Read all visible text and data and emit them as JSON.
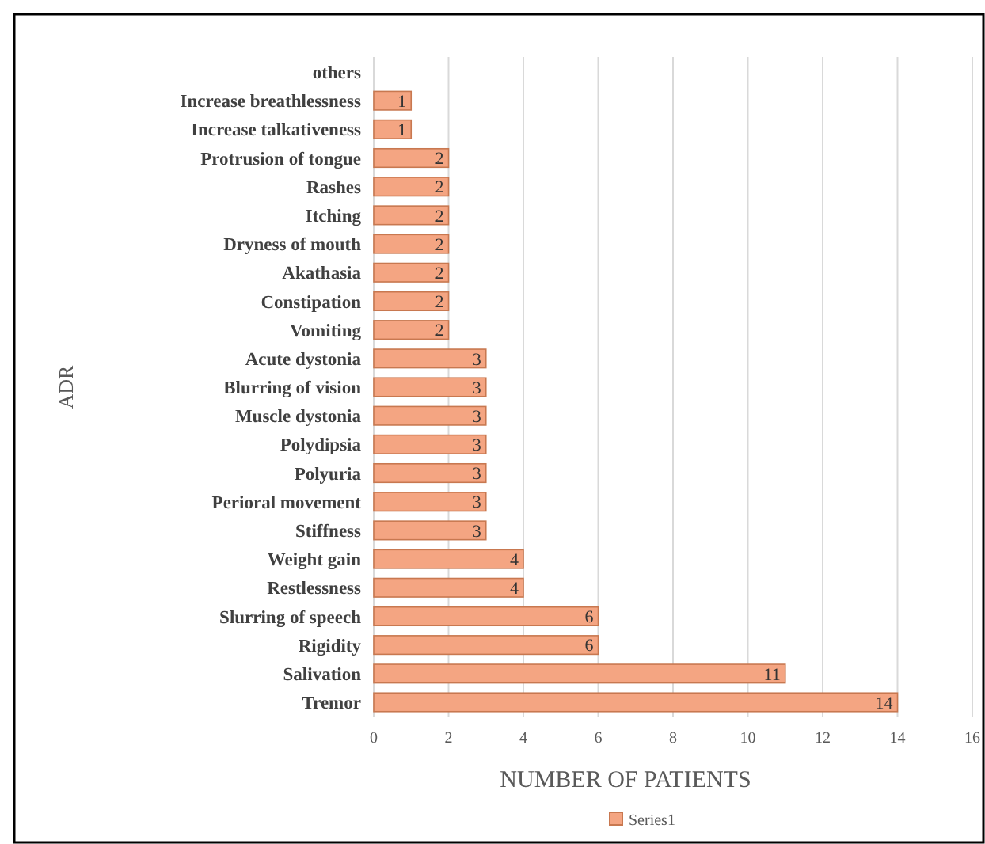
{
  "chart_data": {
    "type": "bar",
    "orientation": "horizontal",
    "xlabel": "NUMBER OF PATIENTS",
    "ylabel": "ADR",
    "categories": [
      "others",
      "Increase breathlessness",
      "Increase talkativeness",
      "Protrusion of tongue",
      "Rashes",
      "Itching",
      "Dryness of mouth",
      "Akathasia",
      "Constipation",
      "Vomiting",
      "Acute dystonia",
      "Blurring of vision",
      "Muscle dystonia",
      "Polydipsia",
      "Polyuria",
      "Perioral movement",
      "Stiffness",
      "Weight gain",
      "Restlessness",
      "Slurring of speech",
      "Rigidity",
      "Salivation",
      "Tremor"
    ],
    "series": [
      {
        "name": "Series1",
        "color": "#f4a582",
        "values": [
          null,
          1,
          1,
          2,
          2,
          2,
          2,
          2,
          2,
          2,
          3,
          3,
          3,
          3,
          3,
          3,
          3,
          4,
          4,
          6,
          6,
          11,
          14
        ]
      }
    ],
    "xlim": [
      0,
      16
    ],
    "xticks": [
      0,
      2,
      4,
      6,
      8,
      10,
      12,
      14,
      16
    ],
    "grid": "x",
    "legend": "bottom",
    "data_labels": true
  }
}
